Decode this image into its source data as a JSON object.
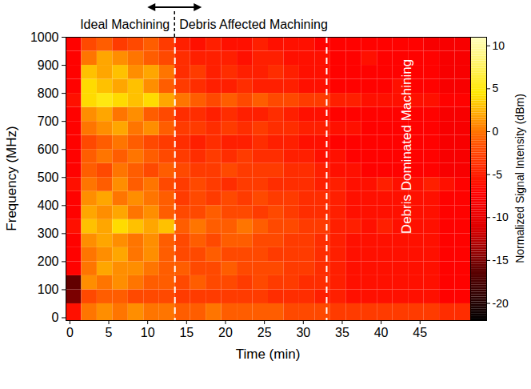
{
  "chart_data": {
    "type": "heatmap",
    "xlabel": "Time (min)",
    "ylabel": "Frequency (MHz)",
    "xlim": [
      -0.5,
      51.5
    ],
    "ylim": [
      -10,
      1000
    ],
    "xticks": [
      0,
      5,
      10,
      15,
      20,
      25,
      30,
      35,
      40,
      45
    ],
    "yticks": [
      0,
      100,
      200,
      300,
      400,
      500,
      600,
      700,
      800,
      900,
      1000
    ],
    "phase_boundaries": [
      13.5,
      33
    ],
    "phase_labels": [
      "Ideal Machining",
      "Debris Affected Machining",
      "Debris Dominated Machining"
    ],
    "x_edges": [
      -0.5,
      1.5,
      3.5,
      5.5,
      7.5,
      9.5,
      11.5,
      13.5,
      15.5,
      17.5,
      19.5,
      21.5,
      23.5,
      25.5,
      27.5,
      29.5,
      31.5,
      33.5,
      35.5,
      37.5,
      39.5,
      41.5,
      43.5,
      45.5,
      47.5,
      49.5,
      51.5
    ],
    "y_edges": [
      -10,
      50,
      100,
      150,
      200,
      250,
      300,
      350,
      400,
      450,
      500,
      550,
      600,
      650,
      700,
      750,
      800,
      850,
      900,
      950,
      1000
    ],
    "values": [
      [
        -6,
        0,
        1,
        0,
        1,
        0,
        0,
        -1,
        -1,
        0,
        -1,
        -1,
        -1,
        -1,
        -2,
        -2,
        -2,
        -3,
        -3,
        -3,
        -3,
        -3,
        -3,
        -3,
        -4,
        -4
      ],
      [
        -15,
        -2,
        -1,
        -1,
        -2,
        -2,
        -2,
        -3,
        -3,
        -3,
        -3,
        -3,
        -3,
        -4,
        -4,
        -4,
        -5,
        -5,
        -6,
        -6,
        -6,
        -6,
        -6,
        -6,
        -7,
        -7
      ],
      [
        -16,
        1,
        0,
        1,
        0,
        -1,
        -1,
        -2,
        -1,
        -2,
        -2,
        -3,
        -2,
        -3,
        -3,
        -4,
        -4,
        -5,
        -6,
        -6,
        -6,
        -6,
        -6,
        -6,
        -7,
        -7
      ],
      [
        -7,
        0,
        2,
        1,
        1,
        0,
        -1,
        -1,
        -2,
        -2,
        -1,
        -2,
        -2,
        -2,
        -3,
        -3,
        -4,
        -5,
        -6,
        -6,
        -6,
        -6,
        -6,
        -6,
        -7,
        -7
      ],
      [
        -7,
        0,
        1,
        2,
        0,
        1,
        -1,
        -2,
        -2,
        -1,
        -2,
        -2,
        -2,
        -3,
        -3,
        -3,
        -4,
        -5,
        -6,
        -6,
        -6,
        -6,
        -6,
        -6,
        -7,
        -7
      ],
      [
        -7,
        1,
        2,
        1,
        0,
        1,
        -1,
        -2,
        -1,
        -2,
        -1,
        -1,
        -2,
        -2,
        -3,
        -3,
        -4,
        -5,
        -6,
        -6,
        -6,
        -6,
        -6,
        -6,
        -7,
        -7
      ],
      [
        -6,
        3,
        2,
        4,
        3,
        2,
        3,
        -1,
        0,
        -1,
        -1,
        0,
        -1,
        -2,
        -2,
        -3,
        -3,
        -5,
        -5,
        -6,
        -5,
        -6,
        -6,
        -6,
        -7,
        -7
      ],
      [
        -7,
        2,
        1,
        2,
        0,
        1,
        -1,
        -2,
        -2,
        -1,
        -2,
        -2,
        -3,
        -2,
        -3,
        -4,
        -4,
        -5,
        -6,
        -6,
        -6,
        -6,
        -6,
        -6,
        -7,
        -7
      ],
      [
        -7,
        1,
        2,
        0,
        1,
        0,
        -1,
        -3,
        -2,
        -3,
        -2,
        -3,
        -2,
        -3,
        -3,
        -4,
        -4,
        -5,
        -6,
        -6,
        -6,
        -6,
        -6,
        -6,
        -7,
        -7
      ],
      [
        -6,
        0,
        -1,
        1,
        -1,
        0,
        -2,
        -3,
        -2,
        -3,
        -4,
        -3,
        -3,
        -4,
        -4,
        -4,
        -5,
        -5,
        -6,
        -6,
        -5,
        -6,
        -6,
        -5,
        -6,
        -7
      ],
      [
        -7,
        -1,
        -2,
        0,
        -1,
        -2,
        -1,
        -2,
        -3,
        -3,
        -2,
        -3,
        -3,
        -3,
        -4,
        -4,
        -5,
        -6,
        -6,
        -7,
        -7,
        -7,
        -7,
        -7,
        -8,
        -8
      ],
      [
        -7,
        -1,
        0,
        -1,
        0,
        -1,
        -2,
        -3,
        -4,
        -3,
        -4,
        -3,
        -4,
        -4,
        -5,
        -5,
        -6,
        -6,
        -7,
        -7,
        -7,
        -7,
        -7,
        -7,
        -8,
        -8
      ],
      [
        -7,
        -2,
        -1,
        0,
        -1,
        -2,
        -3,
        -4,
        -5,
        -4,
        -5,
        -5,
        -4,
        -5,
        -5,
        -6,
        -6,
        -7,
        -7,
        -7,
        -7,
        -7,
        -7,
        -7,
        -8,
        -8
      ],
      [
        -7,
        0,
        1,
        2,
        0,
        1,
        -1,
        -3,
        -3,
        -4,
        -3,
        -4,
        -3,
        -4,
        -4,
        -5,
        -5,
        -6,
        -6,
        -7,
        -7,
        -7,
        -7,
        -7,
        -8,
        -8
      ],
      [
        -7,
        1,
        2,
        0,
        1,
        -1,
        -2,
        -4,
        -4,
        -5,
        -4,
        -5,
        -5,
        -4,
        -5,
        -6,
        -6,
        -7,
        -7,
        -7,
        -7,
        -7,
        -7,
        -7,
        -8,
        -8
      ],
      [
        -6,
        4,
        5,
        4,
        3,
        4,
        2,
        0,
        -1,
        -2,
        -1,
        -2,
        -1,
        -2,
        -2,
        -3,
        -3,
        -5,
        -5,
        -6,
        -6,
        -6,
        -6,
        -6,
        -7,
        -7
      ],
      [
        -7,
        4,
        3,
        2,
        3,
        1,
        -1,
        -3,
        -4,
        -5,
        -5,
        -4,
        -5,
        -5,
        -5,
        -6,
        -6,
        -7,
        -7,
        -7,
        -7,
        -6,
        -7,
        -7,
        -8,
        -8
      ],
      [
        -7,
        3,
        2,
        3,
        1,
        2,
        0,
        -4,
        -3,
        -5,
        -4,
        -5,
        -5,
        -4,
        -5,
        -6,
        -6,
        -7,
        -7,
        -7,
        -7,
        -7,
        -7,
        -7,
        -8,
        -8
      ],
      [
        -7,
        0,
        2,
        1,
        0,
        -1,
        -2,
        -4,
        -5,
        -5,
        -5,
        -6,
        -5,
        -5,
        -6,
        -6,
        -6,
        -7,
        -7,
        -6,
        -7,
        -7,
        -7,
        -7,
        -8,
        -8
      ],
      [
        -7,
        -2,
        -1,
        -3,
        -2,
        -1,
        -3,
        -5,
        -6,
        -5,
        -6,
        -6,
        -5,
        -6,
        -6,
        -6,
        -7,
        -7,
        -7,
        -7,
        -7,
        -7,
        -7,
        -8,
        -8,
        -8
      ]
    ],
    "colorbar_label": "Normalized Signal Intensity (dBm)",
    "colorbar_range": [
      -22,
      11
    ],
    "colorbar_ticks": [
      -20,
      -15,
      -10,
      -5,
      0,
      5,
      10
    ]
  }
}
